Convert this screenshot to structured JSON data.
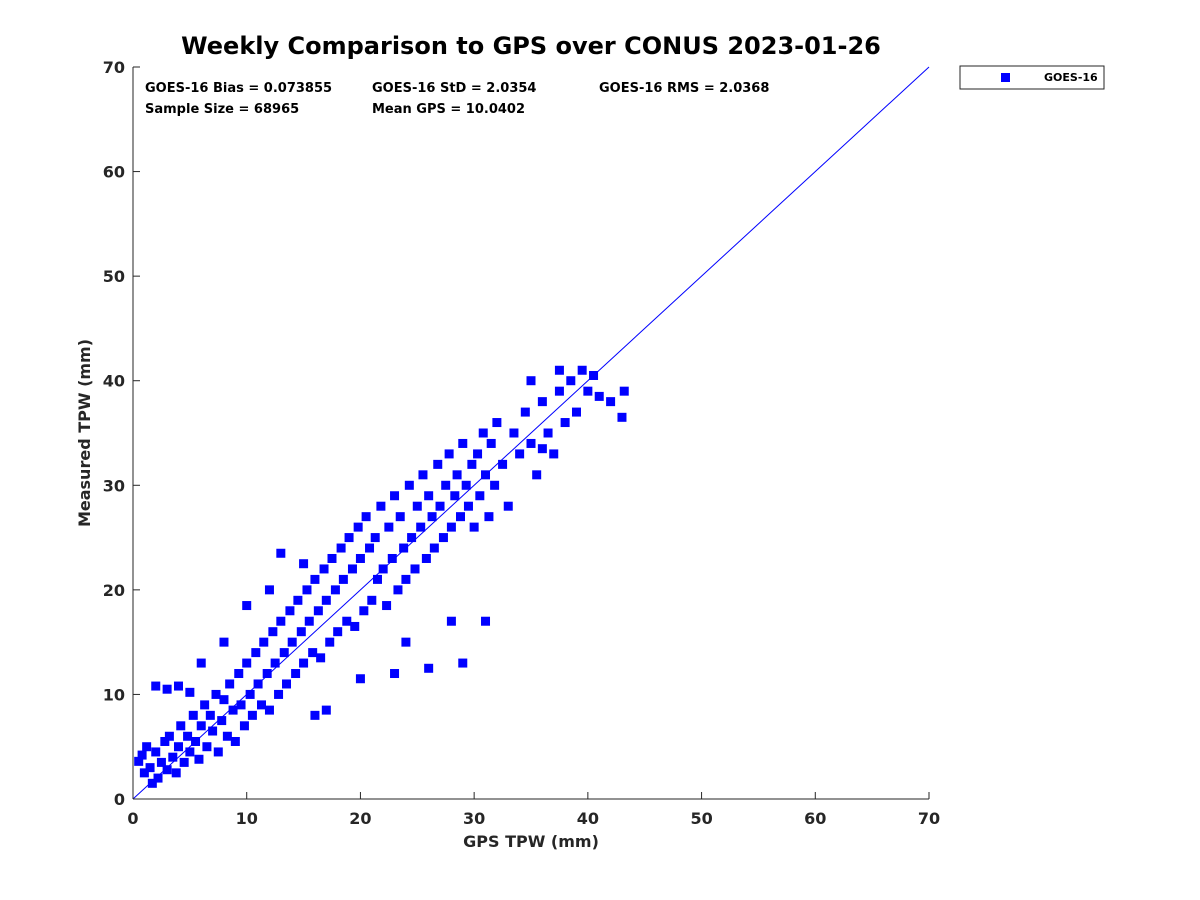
{
  "chart_data": {
    "type": "scatter",
    "title": "Weekly Comparison to GPS over CONUS 2023-01-26",
    "xlabel": "GPS TPW (mm)",
    "ylabel": "Measured TPW (mm)",
    "xlim": [
      0,
      70
    ],
    "ylim": [
      0,
      70
    ],
    "xticks": [
      "0",
      "10",
      "20",
      "30",
      "40",
      "50",
      "60",
      "70"
    ],
    "yticks": [
      "0",
      "10",
      "20",
      "30",
      "40",
      "50",
      "60",
      "70"
    ],
    "grid": false,
    "legend_position": "outside-top-right",
    "reference_line": {
      "name": "1:1 line",
      "x": [
        0,
        70
      ],
      "y": [
        0,
        70
      ],
      "color": "#0000ff"
    },
    "stats": [
      "GOES-16 Bias = 0.073855",
      "GOES-16 StD = 2.0354",
      "GOES-16 RMS = 2.0368",
      "Sample Size = 68965",
      "Mean GPS = 10.0402"
    ],
    "series": [
      {
        "name": "GOES-16",
        "color": "#0000ff",
        "marker": "square",
        "points": [
          [
            0.5,
            3.6
          ],
          [
            0.8,
            4.2
          ],
          [
            1.0,
            2.5
          ],
          [
            1.2,
            5.0
          ],
          [
            1.5,
            3.0
          ],
          [
            1.7,
            1.5
          ],
          [
            2.0,
            4.5
          ],
          [
            2.2,
            2.0
          ],
          [
            2.5,
            3.5
          ],
          [
            2.8,
            5.5
          ],
          [
            3.0,
            2.8
          ],
          [
            3.2,
            6.0
          ],
          [
            3.5,
            4.0
          ],
          [
            3.8,
            2.5
          ],
          [
            4.0,
            5.0
          ],
          [
            4.2,
            7.0
          ],
          [
            4.5,
            3.5
          ],
          [
            4.8,
            6.0
          ],
          [
            5.0,
            4.5
          ],
          [
            5.3,
            8.0
          ],
          [
            5.5,
            5.5
          ],
          [
            5.8,
            3.8
          ],
          [
            6.0,
            7.0
          ],
          [
            6.3,
            9.0
          ],
          [
            6.5,
            5.0
          ],
          [
            6.8,
            8.0
          ],
          [
            7.0,
            6.5
          ],
          [
            7.3,
            10.0
          ],
          [
            7.5,
            4.5
          ],
          [
            7.8,
            7.5
          ],
          [
            8.0,
            9.5
          ],
          [
            8.3,
            6.0
          ],
          [
            8.5,
            11.0
          ],
          [
            8.8,
            8.5
          ],
          [
            9.0,
            5.5
          ],
          [
            9.3,
            12.0
          ],
          [
            9.5,
            9.0
          ],
          [
            9.8,
            7.0
          ],
          [
            10.0,
            13.0
          ],
          [
            10.3,
            10.0
          ],
          [
            10.5,
            8.0
          ],
          [
            10.8,
            14.0
          ],
          [
            11.0,
            11.0
          ],
          [
            11.3,
            9.0
          ],
          [
            11.5,
            15.0
          ],
          [
            11.8,
            12.0
          ],
          [
            12.0,
            8.5
          ],
          [
            12.3,
            16.0
          ],
          [
            12.5,
            13.0
          ],
          [
            12.8,
            10.0
          ],
          [
            13.0,
            17.0
          ],
          [
            13.3,
            14.0
          ],
          [
            13.5,
            11.0
          ],
          [
            13.8,
            18.0
          ],
          [
            14.0,
            15.0
          ],
          [
            14.3,
            12.0
          ],
          [
            14.5,
            19.0
          ],
          [
            14.8,
            16.0
          ],
          [
            15.0,
            13.0
          ],
          [
            15.3,
            20.0
          ],
          [
            15.5,
            17.0
          ],
          [
            15.8,
            14.0
          ],
          [
            16.0,
            21.0
          ],
          [
            16.3,
            18.0
          ],
          [
            16.5,
            13.5
          ],
          [
            16.8,
            22.0
          ],
          [
            17.0,
            19.0
          ],
          [
            17.3,
            15.0
          ],
          [
            17.5,
            23.0
          ],
          [
            17.8,
            20.0
          ],
          [
            18.0,
            16.0
          ],
          [
            18.3,
            24.0
          ],
          [
            18.5,
            21.0
          ],
          [
            18.8,
            17.0
          ],
          [
            19.0,
            25.0
          ],
          [
            19.3,
            22.0
          ],
          [
            19.5,
            16.5
          ],
          [
            19.8,
            26.0
          ],
          [
            20.0,
            23.0
          ],
          [
            20.3,
            18.0
          ],
          [
            20.5,
            27.0
          ],
          [
            20.8,
            24.0
          ],
          [
            21.0,
            19.0
          ],
          [
            21.3,
            25.0
          ],
          [
            21.5,
            21.0
          ],
          [
            21.8,
            28.0
          ],
          [
            22.0,
            22.0
          ],
          [
            22.3,
            18.5
          ],
          [
            22.5,
            26.0
          ],
          [
            22.8,
            23.0
          ],
          [
            23.0,
            29.0
          ],
          [
            23.3,
            20.0
          ],
          [
            23.5,
            27.0
          ],
          [
            23.8,
            24.0
          ],
          [
            24.0,
            21.0
          ],
          [
            24.3,
            30.0
          ],
          [
            24.5,
            25.0
          ],
          [
            24.8,
            22.0
          ],
          [
            25.0,
            28.0
          ],
          [
            25.3,
            26.0
          ],
          [
            25.5,
            31.0
          ],
          [
            25.8,
            23.0
          ],
          [
            26.0,
            29.0
          ],
          [
            26.3,
            27.0
          ],
          [
            26.5,
            24.0
          ],
          [
            26.8,
            32.0
          ],
          [
            27.0,
            28.0
          ],
          [
            27.3,
            25.0
          ],
          [
            27.5,
            30.0
          ],
          [
            27.8,
            33.0
          ],
          [
            28.0,
            26.0
          ],
          [
            28.3,
            29.0
          ],
          [
            28.5,
            31.0
          ],
          [
            28.8,
            27.0
          ],
          [
            29.0,
            34.0
          ],
          [
            29.3,
            30.0
          ],
          [
            29.5,
            28.0
          ],
          [
            29.8,
            32.0
          ],
          [
            30.0,
            26.0
          ],
          [
            30.3,
            33.0
          ],
          [
            30.5,
            29.0
          ],
          [
            30.8,
            35.0
          ],
          [
            31.0,
            31.0
          ],
          [
            31.3,
            27.0
          ],
          [
            31.5,
            34.0
          ],
          [
            31.8,
            30.0
          ],
          [
            32.0,
            36.0
          ],
          [
            32.5,
            32.0
          ],
          [
            33.0,
            28.0
          ],
          [
            33.5,
            35.0
          ],
          [
            34.0,
            33.0
          ],
          [
            34.5,
            37.0
          ],
          [
            35.0,
            34.0
          ],
          [
            35.5,
            31.0
          ],
          [
            36.0,
            38.0
          ],
          [
            36.5,
            35.0
          ],
          [
            37.0,
            33.0
          ],
          [
            37.5,
            39.0
          ],
          [
            38.0,
            36.0
          ],
          [
            38.5,
            40.0
          ],
          [
            39.0,
            37.0
          ],
          [
            39.5,
            41.0
          ],
          [
            40.0,
            39.0
          ],
          [
            40.5,
            40.5
          ],
          [
            41.0,
            38.5
          ],
          [
            42.0,
            38.0
          ],
          [
            43.0,
            36.5
          ],
          [
            43.2,
            39.0
          ],
          [
            35.0,
            40.0
          ],
          [
            37.5,
            41.0
          ],
          [
            2.0,
            10.8
          ],
          [
            3.0,
            10.5
          ],
          [
            4.0,
            10.8
          ],
          [
            5.0,
            10.2
          ],
          [
            15.0,
            22.5
          ],
          [
            17.0,
            8.5
          ],
          [
            16.0,
            8.0
          ],
          [
            29.0,
            13.0
          ],
          [
            24.0,
            15.0
          ],
          [
            28.0,
            17.0
          ],
          [
            31.0,
            17.0
          ],
          [
            36.0,
            33.5
          ],
          [
            26.0,
            12.5
          ],
          [
            23.0,
            12.0
          ],
          [
            20.0,
            11.5
          ],
          [
            13.0,
            23.5
          ],
          [
            10.0,
            18.5
          ],
          [
            8.0,
            15.0
          ],
          [
            6.0,
            13.0
          ],
          [
            12.0,
            20.0
          ]
        ]
      }
    ]
  }
}
